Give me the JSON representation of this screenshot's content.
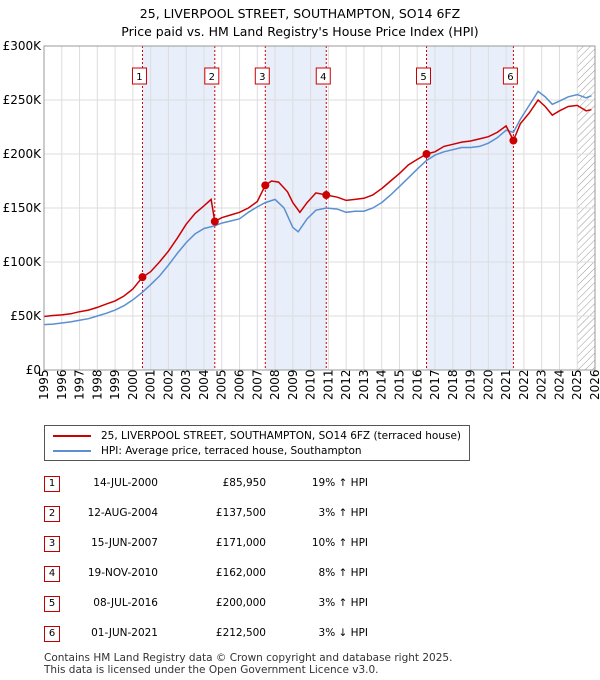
{
  "title_line1": "25, LIVERPOOL STREET, SOUTHAMPTON, SO14 6FZ",
  "title_line2": "Price paid vs. HM Land Registry's House Price Index (HPI)",
  "colors": {
    "property": "#cc0000",
    "hpi": "#5b8fd0",
    "shade": "#e8eefa",
    "grid": "#dddddd",
    "hatch": "#999999"
  },
  "chart_data": {
    "type": "line",
    "title": "25, LIVERPOOL STREET, SOUTHAMPTON, SO14 6FZ — Price paid vs. HM Land Registry's House Price Index (HPI)",
    "xlabel": "",
    "ylabel": "",
    "xlim": [
      1995,
      2026
    ],
    "ylim": [
      0,
      300000
    ],
    "grid": true,
    "y_ticks": [
      0,
      50000,
      100000,
      150000,
      200000,
      250000,
      300000
    ],
    "y_tick_labels": [
      "£0",
      "£50K",
      "£100K",
      "£150K",
      "£200K",
      "£250K",
      "£300K"
    ],
    "x_ticks": [
      1995,
      1996,
      1997,
      1998,
      1999,
      2000,
      2001,
      2002,
      2003,
      2004,
      2005,
      2006,
      2007,
      2008,
      2009,
      2010,
      2011,
      2012,
      2013,
      2014,
      2015,
      2016,
      2017,
      2018,
      2019,
      2020,
      2021,
      2022,
      2023,
      2024,
      2025,
      2026
    ],
    "shaded_periods": [
      [
        2000.54,
        2004.61
      ],
      [
        2007.45,
        2010.88
      ],
      [
        2016.52,
        2021.41
      ]
    ],
    "forecast_start": 2025.0,
    "series": [
      {
        "name": "25, LIVERPOOL STREET, SOUTHAMPTON, SO14 6FZ (terraced house)",
        "points": [
          [
            1995.0,
            49500
          ],
          [
            1995.5,
            50500
          ],
          [
            1996.0,
            51000
          ],
          [
            1996.5,
            52000
          ],
          [
            1997.0,
            54000
          ],
          [
            1997.5,
            55500
          ],
          [
            1998.0,
            58000
          ],
          [
            1998.5,
            61000
          ],
          [
            1999.0,
            64000
          ],
          [
            1999.5,
            68500
          ],
          [
            2000.0,
            75000
          ],
          [
            2000.54,
            85950
          ],
          [
            2001.0,
            91000
          ],
          [
            2001.5,
            100000
          ],
          [
            2002.0,
            110000
          ],
          [
            2002.5,
            122000
          ],
          [
            2003.0,
            135000
          ],
          [
            2003.5,
            145000
          ],
          [
            2004.0,
            152000
          ],
          [
            2004.4,
            158000
          ],
          [
            2004.61,
            137500
          ],
          [
            2005.0,
            141000
          ],
          [
            2005.5,
            143500
          ],
          [
            2006.0,
            146000
          ],
          [
            2006.5,
            150000
          ],
          [
            2007.0,
            156000
          ],
          [
            2007.45,
            171000
          ],
          [
            2007.8,
            175000
          ],
          [
            2008.2,
            174000
          ],
          [
            2008.7,
            165000
          ],
          [
            2009.0,
            155000
          ],
          [
            2009.4,
            146000
          ],
          [
            2009.8,
            155000
          ],
          [
            2010.3,
            164000
          ],
          [
            2010.88,
            162000
          ],
          [
            2011.5,
            160000
          ],
          [
            2012.0,
            157000
          ],
          [
            2012.5,
            158000
          ],
          [
            2013.0,
            159000
          ],
          [
            2013.5,
            162000
          ],
          [
            2014.0,
            168000
          ],
          [
            2014.5,
            175000
          ],
          [
            2015.0,
            182000
          ],
          [
            2015.5,
            190000
          ],
          [
            2016.0,
            195000
          ],
          [
            2016.52,
            200000
          ],
          [
            2017.0,
            202000
          ],
          [
            2017.5,
            207000
          ],
          [
            2018.0,
            209000
          ],
          [
            2018.5,
            211000
          ],
          [
            2019.0,
            212000
          ],
          [
            2019.5,
            214000
          ],
          [
            2020.0,
            216000
          ],
          [
            2020.5,
            220000
          ],
          [
            2021.0,
            226000
          ],
          [
            2021.41,
            212500
          ],
          [
            2021.8,
            228000
          ],
          [
            2022.3,
            238000
          ],
          [
            2022.8,
            250000
          ],
          [
            2023.2,
            244000
          ],
          [
            2023.6,
            236000
          ],
          [
            2024.0,
            240000
          ],
          [
            2024.5,
            244000
          ],
          [
            2025.0,
            245000
          ],
          [
            2025.5,
            240000
          ],
          [
            2025.8,
            241000
          ]
        ]
      },
      {
        "name": "HPI: Average price, terraced house, Southampton",
        "points": [
          [
            1995.0,
            42000
          ],
          [
            1995.5,
            42500
          ],
          [
            1996.0,
            43500
          ],
          [
            1996.5,
            44500
          ],
          [
            1997.0,
            46000
          ],
          [
            1997.5,
            47500
          ],
          [
            1998.0,
            50000
          ],
          [
            1998.5,
            52500
          ],
          [
            1999.0,
            55500
          ],
          [
            1999.5,
            59500
          ],
          [
            2000.0,
            65000
          ],
          [
            2000.54,
            72000
          ],
          [
            2001.0,
            79000
          ],
          [
            2001.5,
            87000
          ],
          [
            2002.0,
            97000
          ],
          [
            2002.5,
            108000
          ],
          [
            2003.0,
            118000
          ],
          [
            2003.5,
            126000
          ],
          [
            2004.0,
            131000
          ],
          [
            2004.61,
            133500
          ],
          [
            2005.0,
            136000
          ],
          [
            2005.5,
            138000
          ],
          [
            2006.0,
            140000
          ],
          [
            2006.5,
            146000
          ],
          [
            2007.0,
            151000
          ],
          [
            2007.45,
            155000
          ],
          [
            2008.0,
            158000
          ],
          [
            2008.5,
            150000
          ],
          [
            2009.0,
            132000
          ],
          [
            2009.3,
            128000
          ],
          [
            2009.8,
            140000
          ],
          [
            2010.3,
            148000
          ],
          [
            2010.88,
            150000
          ],
          [
            2011.5,
            149000
          ],
          [
            2012.0,
            146000
          ],
          [
            2012.5,
            147000
          ],
          [
            2013.0,
            147000
          ],
          [
            2013.5,
            150000
          ],
          [
            2014.0,
            155000
          ],
          [
            2014.5,
            162000
          ],
          [
            2015.0,
            170000
          ],
          [
            2015.5,
            178000
          ],
          [
            2016.0,
            186000
          ],
          [
            2016.52,
            194000
          ],
          [
            2017.0,
            199000
          ],
          [
            2017.5,
            202000
          ],
          [
            2018.0,
            204000
          ],
          [
            2018.5,
            206000
          ],
          [
            2019.0,
            206000
          ],
          [
            2019.5,
            207000
          ],
          [
            2020.0,
            210000
          ],
          [
            2020.5,
            215000
          ],
          [
            2021.0,
            222000
          ],
          [
            2021.41,
            220000
          ],
          [
            2021.8,
            232000
          ],
          [
            2022.3,
            245000
          ],
          [
            2022.8,
            258000
          ],
          [
            2023.2,
            253000
          ],
          [
            2023.6,
            246000
          ],
          [
            2024.0,
            249000
          ],
          [
            2024.5,
            253000
          ],
          [
            2025.0,
            255000
          ],
          [
            2025.5,
            252000
          ],
          [
            2025.8,
            254000
          ]
        ]
      }
    ],
    "sales": [
      {
        "id": "1",
        "x": 2000.54,
        "y": 85950
      },
      {
        "id": "2",
        "x": 2004.61,
        "y": 137500
      },
      {
        "id": "3",
        "x": 2007.45,
        "y": 171000
      },
      {
        "id": "4",
        "x": 2010.88,
        "y": 162000
      },
      {
        "id": "5",
        "x": 2016.52,
        "y": 200000
      },
      {
        "id": "6",
        "x": 2021.41,
        "y": 212500
      }
    ]
  },
  "legend": {
    "property_label": "25, LIVERPOOL STREET, SOUTHAMPTON, SO14 6FZ (terraced house)",
    "hpi_label": "HPI: Average price, terraced house, Southampton"
  },
  "transactions": [
    {
      "num": "1",
      "date": "14-JUL-2000",
      "price": "£85,950",
      "hpi": "19% ↑ HPI"
    },
    {
      "num": "2",
      "date": "12-AUG-2004",
      "price": "£137,500",
      "hpi": "3% ↑ HPI"
    },
    {
      "num": "3",
      "date": "15-JUN-2007",
      "price": "£171,000",
      "hpi": "10% ↑ HPI"
    },
    {
      "num": "4",
      "date": "19-NOV-2010",
      "price": "£162,000",
      "hpi": "8% ↑ HPI"
    },
    {
      "num": "5",
      "date": "08-JUL-2016",
      "price": "£200,000",
      "hpi": "3% ↑ HPI"
    },
    {
      "num": "6",
      "date": "01-JUN-2021",
      "price": "£212,500",
      "hpi": "3% ↓ HPI"
    }
  ],
  "footer": {
    "line1": "Contains HM Land Registry data © Crown copyright and database right 2025.",
    "line2": "This data is licensed under the Open Government Licence v3.0."
  }
}
